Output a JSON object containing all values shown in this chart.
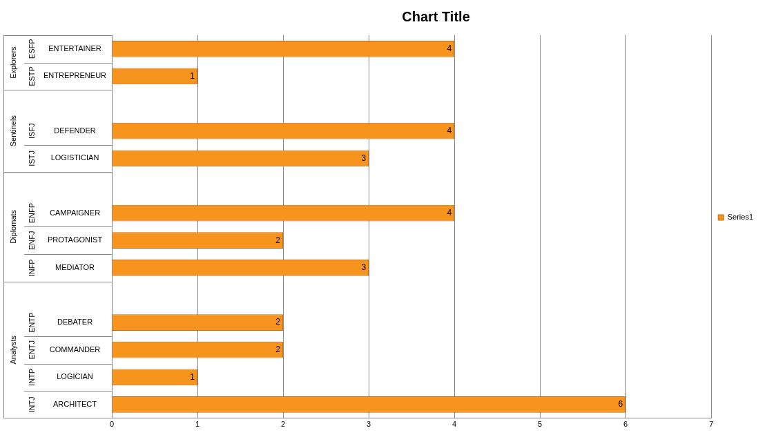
{
  "chart_data": {
    "type": "bar",
    "orientation": "horizontal",
    "title": "Chart Title",
    "categories": [
      "ENTERTAINER",
      "ENTREPRENEUR",
      null,
      "DEFENDER",
      "LOGISTICIAN",
      null,
      "CAMPAIGNER",
      "PROTAGONIST",
      "MEDIATOR",
      null,
      "DEBATER",
      "COMMANDER",
      "LOGICIAN",
      "ARCHITECT"
    ],
    "series": [
      {
        "name": "Series1",
        "color": "#f7941d",
        "values": [
          4,
          1,
          null,
          4,
          3,
          null,
          4,
          2,
          3,
          null,
          2,
          2,
          1,
          6
        ]
      }
    ],
    "xlim": [
      0,
      7
    ],
    "xticks": [
      0,
      1,
      2,
      3,
      4,
      5,
      6,
      7
    ],
    "grid": "x",
    "legend": "right",
    "data_labels": true,
    "annotations": [
      "Explorers",
      "Sentinels",
      "Diplomats",
      "Analysts",
      "ESFP",
      "ESTP",
      "ISFJ",
      "ISTJ",
      "ENFP",
      "ENFJ",
      "INFP",
      "ENTP",
      "ENTJ",
      "INTP",
      "INTJ"
    ]
  }
}
